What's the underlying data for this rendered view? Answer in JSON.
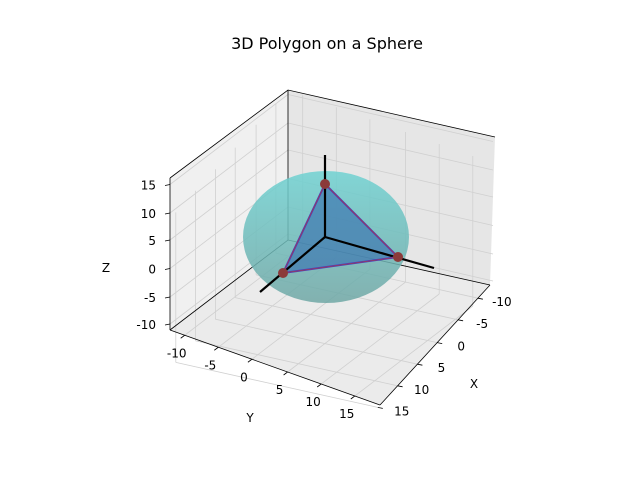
{
  "chart_data": {
    "type": "3d-surface",
    "title": "3D Polygon on a Sphere",
    "xlabel": "X",
    "ylabel": "Y",
    "zlabel": "Z",
    "xticks": [
      -10,
      -5,
      0,
      5,
      10,
      15
    ],
    "yticks": [
      -10,
      -5,
      0,
      5,
      10,
      15
    ],
    "zticks": [
      -10,
      -5,
      0,
      5,
      10,
      15
    ],
    "sphere": {
      "center": [
        0,
        0,
        0
      ],
      "radius": 10,
      "color": "#5fc6c6",
      "alpha": 0.6
    },
    "axes_lines": [
      {
        "from": [
          0,
          0,
          0
        ],
        "to": [
          15,
          0,
          0
        ]
      },
      {
        "from": [
          0,
          0,
          0
        ],
        "to": [
          0,
          15,
          0
        ]
      },
      {
        "from": [
          0,
          0,
          0
        ],
        "to": [
          0,
          0,
          15
        ]
      }
    ],
    "polygon": {
      "vertices": [
        [
          10,
          0,
          0
        ],
        [
          0,
          10,
          0
        ],
        [
          0,
          0,
          10
        ]
      ],
      "face_color": "#3b6fb5",
      "edge_color": "#4b3fbf",
      "vertex_color": "#8b3a3a"
    }
  }
}
